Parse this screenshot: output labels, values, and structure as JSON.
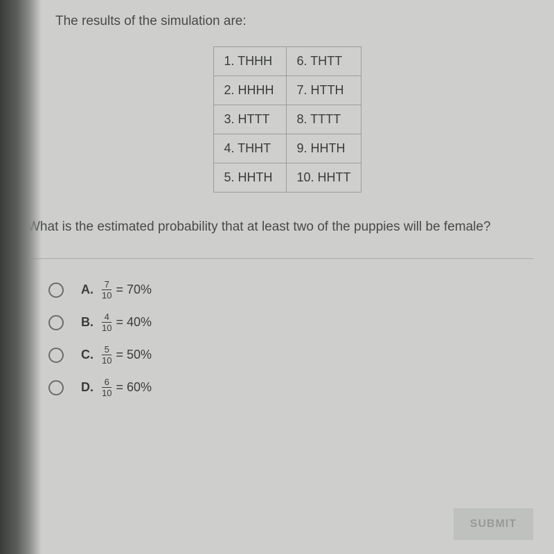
{
  "intro": "The results of the simulation are:",
  "table": {
    "rows": [
      [
        "1. THHH",
        "6. THTT"
      ],
      [
        "2. HHHH",
        "7. HTTH"
      ],
      [
        "3. HTTT",
        "8. TTTT"
      ],
      [
        "4. THHT",
        "9. HHTH"
      ],
      [
        "5. HHTH",
        "10. HHTT"
      ]
    ],
    "border_color": "#9a9c9a",
    "cell_bg": "#cfd0cd",
    "text_color": "#3a3c3a"
  },
  "question": "What is the estimated probability that at least two of the puppies will be female?",
  "answers": [
    {
      "letter": "A.",
      "numerator": "7",
      "denominator": "10",
      "percent": "= 70%"
    },
    {
      "letter": "B.",
      "numerator": "4",
      "denominator": "10",
      "percent": "= 40%"
    },
    {
      "letter": "C.",
      "numerator": "5",
      "denominator": "10",
      "percent": "= 50%"
    },
    {
      "letter": "D.",
      "numerator": "6",
      "denominator": "10",
      "percent": "= 60%"
    }
  ],
  "submit_label": "SUBMIT",
  "colors": {
    "page_bg": "#cecfcc",
    "text": "#484a48",
    "radio_border": "#6a6c6a",
    "submit_bg": "#bfc1be",
    "submit_text": "#989a98"
  }
}
